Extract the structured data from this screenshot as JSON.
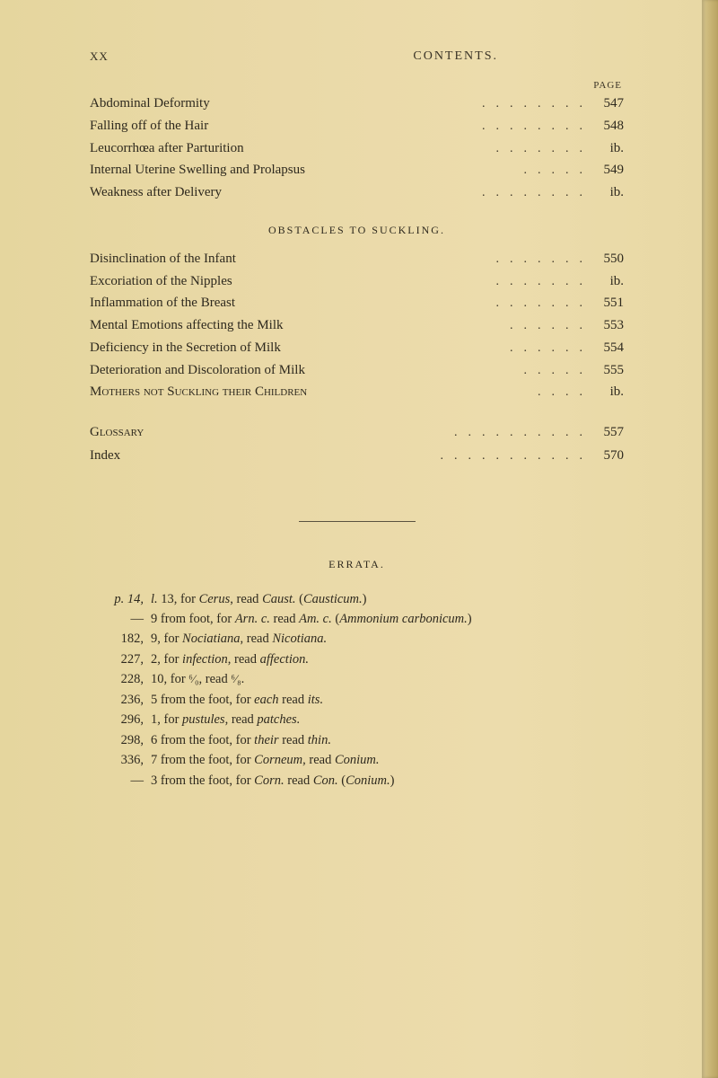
{
  "header": {
    "page_num": "XX",
    "title": "CONTENTS.",
    "page_label": "PAGE"
  },
  "sections": {
    "first_block": [
      {
        "text": "Abdominal Deformity",
        "dots": "........",
        "page": "547"
      },
      {
        "text": "Falling off of the Hair",
        "dots": "........",
        "page": "548"
      },
      {
        "text": "Leucorrhœa after Parturition",
        "dots": ".......",
        "page": "ib."
      },
      {
        "text": "Internal Uterine Swelling and Prolapsus",
        "dots": ".....",
        "page": "549"
      },
      {
        "text": "Weakness after Delivery",
        "dots": "........",
        "page": "ib."
      }
    ],
    "obstacles_header": "OBSTACLES TO SUCKLING.",
    "obstacles": [
      {
        "text": "Disinclination of the Infant",
        "dots": ".......",
        "page": "550"
      },
      {
        "text": "Excoriation of the Nipples",
        "dots": ".......",
        "page": "ib."
      },
      {
        "text": "Inflammation of the Breast",
        "dots": ".......",
        "page": "551"
      },
      {
        "text": "Mental Emotions affecting the Milk",
        "dots": "......",
        "page": "553"
      },
      {
        "text": "Deficiency in the Secretion of Milk",
        "dots": "......",
        "page": "554"
      },
      {
        "text": "Deterioration and Discoloration of Milk",
        "dots": ".....",
        "page": "555"
      },
      {
        "text": "Mothers not Suckling their Children",
        "dots": "....",
        "page": "ib."
      }
    ],
    "tail": [
      {
        "text": "Glossary",
        "dots": "..........",
        "page": "557"
      },
      {
        "text": "Index",
        "dots": "...........",
        "page": "570"
      }
    ]
  },
  "errata": {
    "title": "ERRATA.",
    "lines": [
      {
        "ref": "p. 14,",
        "ref_style": "italic",
        "text_html": "<em>l.</em> 13, for <em>Cerus</em>, read <em>Caust.</em> (<em>Causticum.</em>)"
      },
      {
        "ref": "—",
        "ref_style": "normal",
        "text_html": "9 from foot, for <em>Arn. c.</em> read <em>Am. c.</em> (<em>Ammonium carbonicum.</em>)"
      },
      {
        "ref": "182,",
        "ref_style": "normal",
        "text_html": "9, for <em>Nociatiana</em>, read <em>Nicotiana.</em>"
      },
      {
        "ref": "227,",
        "ref_style": "normal",
        "text_html": "2, for <em>infection</em>, read <em>affection.</em>"
      },
      {
        "ref": "228,",
        "ref_style": "normal",
        "text_html": "10, for <span class=\"frac\">⁶⁄₀</span>, read <span class=\"frac\">⁶⁄₈</span>."
      },
      {
        "ref": "236,",
        "ref_style": "normal",
        "text_html": "5 from the foot, for <em>each</em> read <em>its.</em>"
      },
      {
        "ref": "296,",
        "ref_style": "normal",
        "text_html": "1, for <em>pustules</em>, read <em>patches.</em>"
      },
      {
        "ref": "298,",
        "ref_style": "normal",
        "text_html": "6 from the foot, for <em>their</em> read <em>thin.</em>"
      },
      {
        "ref": "336,",
        "ref_style": "normal",
        "text_html": "7 from the foot, for <em>Corneum</em>, read <em>Conium.</em>"
      },
      {
        "ref": "—",
        "ref_style": "normal",
        "text_html": "3 from the foot, for <em>Corn.</em> read <em>Con.</em> (<em>Conium.</em>)"
      }
    ]
  },
  "colors": {
    "paper": "#e8daa5",
    "text": "#2e291e",
    "edge_light": "#d8c78f",
    "edge_dark": "#b9a362"
  }
}
